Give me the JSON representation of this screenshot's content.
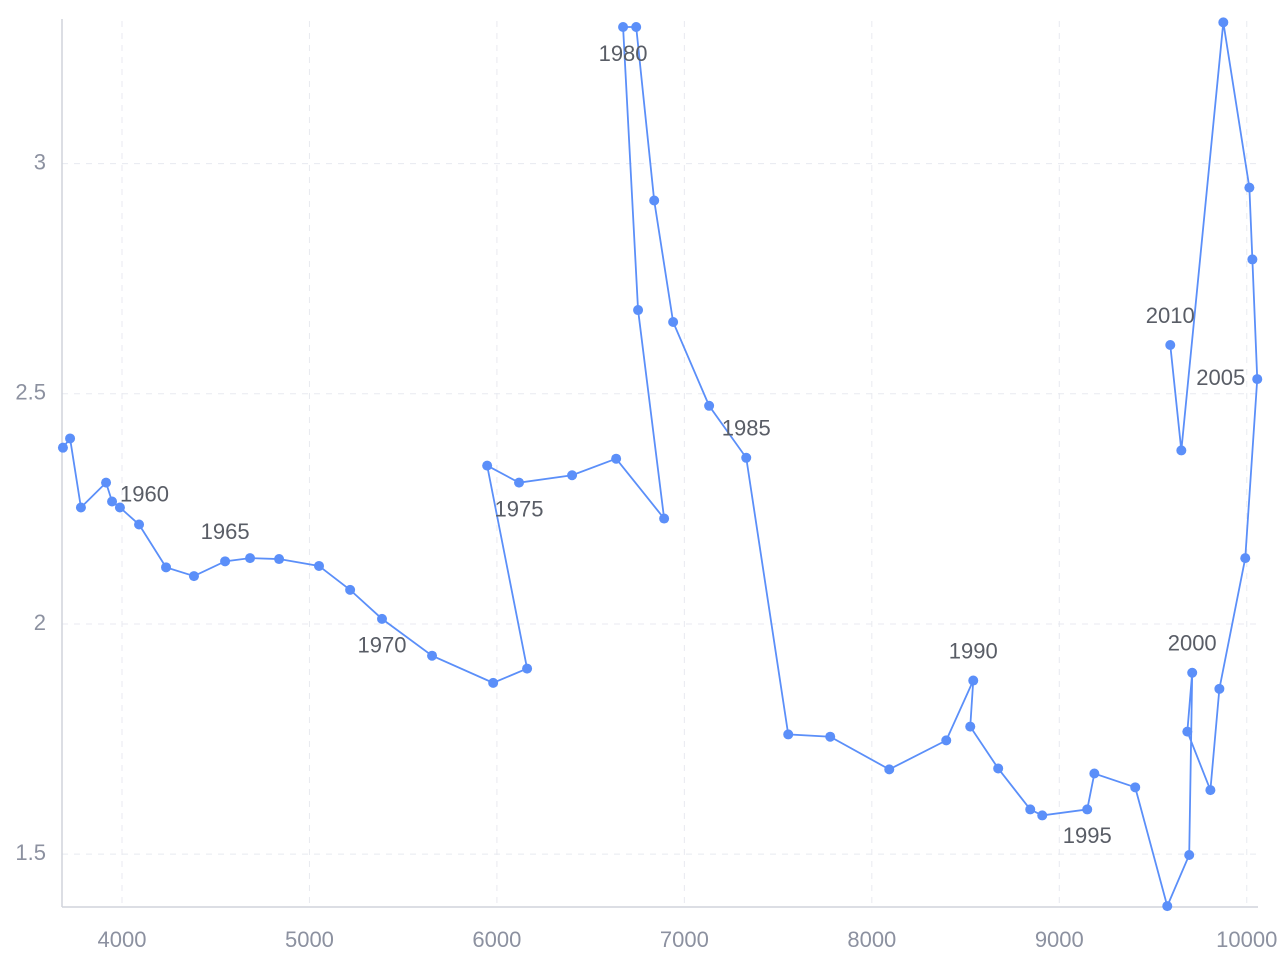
{
  "chart_data": {
    "type": "connected-scatter",
    "color": "#5b8ff9",
    "x": [
      3685,
      3723,
      3781,
      3915,
      3947,
      3989,
      4091,
      4235,
      4384,
      4550,
      4683,
      4838,
      5051,
      5217,
      5387,
      5654,
      5980,
      6161,
      5948,
      6118,
      6401,
      6636,
      6892,
      6753,
      6673,
      6743,
      6839,
      6940,
      7132,
      7330,
      7554,
      7778,
      8093,
      8397,
      8541,
      8525,
      8674,
      8845,
      8909,
      9149,
      9187,
      9405,
      9576,
      9693,
      9709,
      9683,
      9806,
      9854,
      9992,
      10056,
      10030,
      10014,
      9875,
      9651,
      9592
    ],
    "values": [
      2.383,
      2.403,
      2.253,
      2.307,
      2.266,
      2.253,
      2.216,
      2.123,
      2.104,
      2.136,
      2.143,
      2.141,
      2.126,
      2.074,
      2.011,
      1.931,
      1.872,
      1.903,
      2.344,
      2.307,
      2.323,
      2.359,
      2.229,
      2.682,
      3.297,
      3.297,
      2.92,
      2.656,
      2.474,
      2.361,
      1.76,
      1.755,
      1.684,
      1.747,
      1.877,
      1.777,
      1.686,
      1.597,
      1.584,
      1.597,
      1.675,
      1.645,
      1.387,
      1.498,
      1.894,
      1.766,
      1.639,
      1.859,
      2.143,
      2.532,
      2.792,
      2.948,
      3.307,
      2.377,
      2.606
    ],
    "labels": [
      null,
      null,
      null,
      null,
      "1960",
      null,
      null,
      null,
      null,
      "1965",
      null,
      null,
      null,
      null,
      "1970",
      null,
      null,
      null,
      null,
      "1975",
      null,
      null,
      null,
      null,
      "1980",
      null,
      null,
      null,
      null,
      "1985",
      null,
      null,
      null,
      null,
      "1990",
      null,
      null,
      null,
      null,
      "1995",
      null,
      null,
      null,
      null,
      "2000",
      null,
      null,
      null,
      null,
      "2005",
      null,
      null,
      null,
      null,
      "2010"
    ],
    "xlim": [
      3680,
      10060
    ],
    "ylim": [
      1.385,
      3.31
    ],
    "xticks": [
      4000,
      5000,
      6000,
      7000,
      8000,
      9000,
      10000
    ],
    "yticks": [
      1.5,
      2,
      2.5,
      3
    ],
    "grid": true
  }
}
